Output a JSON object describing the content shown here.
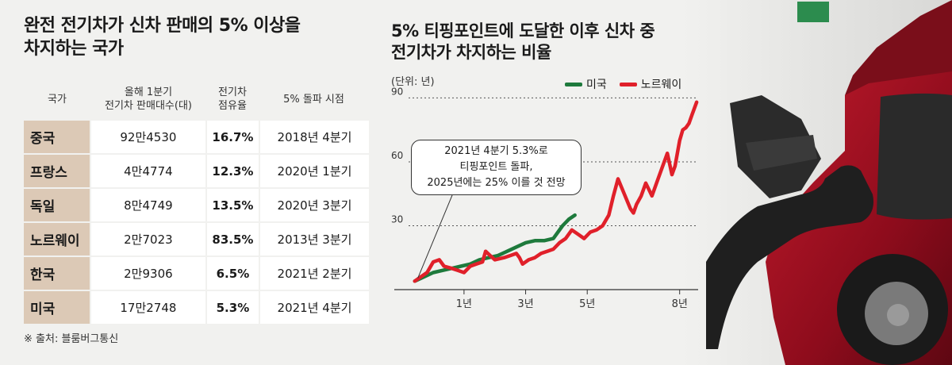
{
  "left": {
    "title_lines": [
      "완전 전기차가 신차 판매의 5% 이상을",
      "차지하는 국가"
    ],
    "headers": [
      [
        "국가"
      ],
      [
        "올해 1분기",
        "전기차 판매대수(대)"
      ],
      [
        "전기차",
        "점유율"
      ],
      [
        "5% 돌파 시점"
      ]
    ],
    "rows": [
      {
        "country": "중국",
        "sales": "92만4530",
        "share": "16.7%",
        "when": "2018년 4분기"
      },
      {
        "country": "프랑스",
        "sales": "4만4774",
        "share": "12.3%",
        "when": "2020년 1분기"
      },
      {
        "country": "독일",
        "sales": "8만4749",
        "share": "13.5%",
        "when": "2020년 3분기"
      },
      {
        "country": "노르웨이",
        "sales": "2만7023",
        "share": "83.5%",
        "when": "2013년 3분기"
      },
      {
        "country": "한국",
        "sales": "2만9306",
        "share": "6.5%",
        "when": "2021년 2분기"
      },
      {
        "country": "미국",
        "sales": "17만2748",
        "share": "5.3%",
        "when": "2021년 4분기"
      }
    ],
    "source": "※ 출처: 블룸버그통신",
    "country_bg": "#dcc9b6"
  },
  "chart_data": {
    "type": "line",
    "title_lines": [
      "5% 티핑포인트에 도달한 이후 신차 중",
      "전기차가 차지하는 비율"
    ],
    "unit": "(단위: 년)",
    "x_tick_labels": [
      {
        "x": 1,
        "label": "1년"
      },
      {
        "x": 3,
        "label": "3년"
      },
      {
        "x": 5,
        "label": "5년"
      },
      {
        "x": 8,
        "label": "8년"
      }
    ],
    "y_ticks": [
      30,
      60,
      90
    ],
    "xlim": [
      -0.8,
      8.6
    ],
    "ylim": [
      0,
      95
    ],
    "annotation_lines": [
      "2021년 4분기 5.3%로",
      "티핑포인트 돌파,",
      "2025년에는 25% 이를 것 전망"
    ],
    "series": [
      {
        "name": "미국",
        "color": "#1e7a3c",
        "points": [
          [
            -0.6,
            4
          ],
          [
            -0.3,
            6
          ],
          [
            0,
            8
          ],
          [
            0.3,
            9
          ],
          [
            0.6,
            10
          ],
          [
            0.9,
            11
          ],
          [
            1.2,
            12
          ],
          [
            1.5,
            14
          ],
          [
            1.8,
            15
          ],
          [
            2.1,
            16
          ],
          [
            2.4,
            18
          ],
          [
            2.7,
            20
          ],
          [
            3.0,
            22
          ],
          [
            3.3,
            23
          ],
          [
            3.6,
            23
          ],
          [
            3.9,
            24
          ],
          [
            4.2,
            30
          ],
          [
            4.4,
            33
          ],
          [
            4.6,
            35
          ]
        ]
      },
      {
        "name": "노르웨이",
        "color": "#e0202a",
        "points": [
          [
            -0.6,
            4
          ],
          [
            -0.4,
            6
          ],
          [
            -0.2,
            8
          ],
          [
            0,
            13
          ],
          [
            0.2,
            14
          ],
          [
            0.35,
            11
          ],
          [
            0.6,
            10
          ],
          [
            0.8,
            9
          ],
          [
            1.0,
            8
          ],
          [
            1.2,
            11
          ],
          [
            1.4,
            12
          ],
          [
            1.6,
            13
          ],
          [
            1.7,
            18
          ],
          [
            1.85,
            16
          ],
          [
            2.0,
            14
          ],
          [
            2.3,
            15
          ],
          [
            2.5,
            16
          ],
          [
            2.7,
            17
          ],
          [
            2.8,
            15
          ],
          [
            2.9,
            12
          ],
          [
            3.1,
            14
          ],
          [
            3.3,
            15
          ],
          [
            3.5,
            17
          ],
          [
            3.7,
            18
          ],
          [
            3.9,
            19
          ],
          [
            4.1,
            22
          ],
          [
            4.3,
            24
          ],
          [
            4.5,
            28
          ],
          [
            4.7,
            26
          ],
          [
            4.9,
            24
          ],
          [
            5.1,
            27
          ],
          [
            5.3,
            28
          ],
          [
            5.5,
            30
          ],
          [
            5.7,
            35
          ],
          [
            5.85,
            44
          ],
          [
            6.0,
            52
          ],
          [
            6.2,
            45
          ],
          [
            6.4,
            38
          ],
          [
            6.5,
            36
          ],
          [
            6.6,
            40
          ],
          [
            6.75,
            44
          ],
          [
            6.9,
            50
          ],
          [
            7.0,
            47
          ],
          [
            7.1,
            44
          ],
          [
            7.3,
            52
          ],
          [
            7.5,
            60
          ],
          [
            7.6,
            64
          ],
          [
            7.75,
            54
          ],
          [
            7.85,
            58
          ],
          [
            8.0,
            70
          ],
          [
            8.1,
            75
          ],
          [
            8.2,
            76
          ],
          [
            8.3,
            78
          ],
          [
            8.4,
            82
          ],
          [
            8.55,
            88
          ]
        ]
      }
    ]
  }
}
